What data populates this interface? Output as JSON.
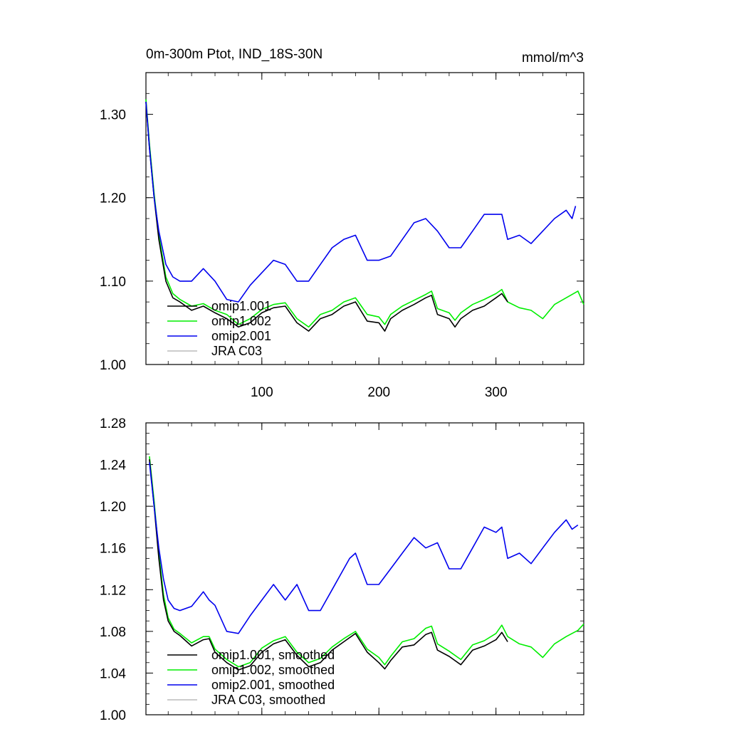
{
  "chart_data": [
    {
      "type": "line",
      "title": "0m-300m Ptot, IND_18S-30N",
      "units": "mmol/m^3",
      "xlim": [
        1,
        375
      ],
      "ylim": [
        1.0,
        1.35
      ],
      "x_ticks": [
        100,
        200,
        300
      ],
      "x_tick_labels": [
        "100",
        "200",
        "300"
      ],
      "y_ticks": [
        1.0,
        1.1,
        1.2,
        1.3
      ],
      "y_tick_labels": [
        "1.00",
        "1.10",
        "1.20",
        "1.30"
      ],
      "legend_position": "lower-left",
      "series": [
        {
          "name": "omip1.001",
          "color": "#000000",
          "x": [
            1,
            4,
            8,
            12,
            18,
            24,
            30,
            40,
            50,
            60,
            70,
            80,
            90,
            100,
            110,
            120,
            130,
            140,
            150,
            160,
            170,
            180,
            190,
            200,
            205,
            210,
            220,
            230,
            240,
            245,
            250,
            260,
            265,
            270,
            280,
            290,
            300,
            305,
            310
          ],
          "y": [
            1.315,
            1.26,
            1.2,
            1.15,
            1.1,
            1.08,
            1.075,
            1.065,
            1.07,
            1.062,
            1.055,
            1.045,
            1.05,
            1.062,
            1.068,
            1.07,
            1.05,
            1.04,
            1.055,
            1.06,
            1.07,
            1.075,
            1.052,
            1.05,
            1.04,
            1.055,
            1.065,
            1.072,
            1.08,
            1.083,
            1.06,
            1.055,
            1.045,
            1.055,
            1.065,
            1.07,
            1.08,
            1.085,
            1.075
          ]
        },
        {
          "name": "omip1.002",
          "color": "#00ee00",
          "x": [
            1,
            4,
            8,
            12,
            18,
            24,
            30,
            40,
            50,
            60,
            70,
            80,
            90,
            100,
            110,
            120,
            130,
            140,
            150,
            160,
            170,
            180,
            190,
            200,
            205,
            210,
            220,
            230,
            240,
            245,
            250,
            260,
            265,
            270,
            280,
            290,
            300,
            305,
            310,
            320,
            330,
            340,
            350,
            360,
            370,
            375
          ],
          "y": [
            1.318,
            1.265,
            1.205,
            1.155,
            1.105,
            1.085,
            1.078,
            1.07,
            1.073,
            1.065,
            1.06,
            1.048,
            1.055,
            1.066,
            1.072,
            1.074,
            1.055,
            1.045,
            1.06,
            1.065,
            1.075,
            1.08,
            1.06,
            1.057,
            1.048,
            1.06,
            1.07,
            1.077,
            1.084,
            1.088,
            1.067,
            1.062,
            1.053,
            1.062,
            1.072,
            1.078,
            1.085,
            1.09,
            1.075,
            1.068,
            1.065,
            1.055,
            1.072,
            1.08,
            1.088,
            1.072
          ]
        },
        {
          "name": "omip2.001",
          "color": "#0000ee",
          "x": [
            1,
            4,
            8,
            12,
            18,
            24,
            30,
            40,
            50,
            60,
            70,
            80,
            90,
            100,
            110,
            120,
            130,
            140,
            150,
            160,
            170,
            180,
            190,
            200,
            210,
            220,
            230,
            240,
            250,
            260,
            270,
            280,
            290,
            300,
            305,
            310,
            320,
            330,
            340,
            350,
            360,
            365,
            368
          ],
          "y": [
            1.315,
            1.26,
            1.2,
            1.16,
            1.12,
            1.105,
            1.1,
            1.1,
            1.115,
            1.1,
            1.078,
            1.075,
            1.095,
            1.11,
            1.125,
            1.12,
            1.1,
            1.1,
            1.12,
            1.14,
            1.15,
            1.155,
            1.125,
            1.125,
            1.13,
            1.15,
            1.17,
            1.175,
            1.16,
            1.14,
            1.14,
            1.16,
            1.18,
            1.18,
            1.18,
            1.15,
            1.155,
            1.145,
            1.16,
            1.175,
            1.185,
            1.175,
            1.19
          ]
        },
        {
          "name": "JRA C03",
          "color": "#bbbbbb",
          "x": [],
          "y": []
        }
      ]
    },
    {
      "type": "line",
      "title": "",
      "xlim": [
        1,
        375
      ],
      "ylim": [
        1.0,
        1.28
      ],
      "x_ticks": [
        100,
        200,
        300
      ],
      "x_tick_labels": [],
      "y_ticks": [
        1.0,
        1.04,
        1.08,
        1.12,
        1.16,
        1.2,
        1.24,
        1.28
      ],
      "y_tick_labels": [
        "1.00",
        "1.04",
        "1.08",
        "1.12",
        "1.16",
        "1.20",
        "1.24",
        "1.28"
      ],
      "legend_position": "lower-left",
      "series": [
        {
          "name": "omip1.001, smoothed",
          "color": "#000000",
          "x": [
            4,
            8,
            12,
            16,
            20,
            25,
            30,
            40,
            50,
            55,
            60,
            70,
            80,
            90,
            100,
            110,
            120,
            130,
            140,
            150,
            160,
            170,
            180,
            190,
            200,
            205,
            210,
            220,
            230,
            240,
            245,
            250,
            260,
            270,
            280,
            290,
            300,
            305,
            310
          ],
          "y": [
            1.245,
            1.2,
            1.15,
            1.11,
            1.09,
            1.08,
            1.076,
            1.066,
            1.072,
            1.073,
            1.06,
            1.05,
            1.043,
            1.047,
            1.06,
            1.068,
            1.072,
            1.057,
            1.046,
            1.05,
            1.062,
            1.07,
            1.078,
            1.06,
            1.05,
            1.044,
            1.052,
            1.065,
            1.067,
            1.077,
            1.079,
            1.062,
            1.056,
            1.048,
            1.062,
            1.066,
            1.072,
            1.079,
            1.07
          ]
        },
        {
          "name": "omip1.002, smoothed",
          "color": "#00ee00",
          "x": [
            4,
            8,
            12,
            16,
            20,
            25,
            30,
            40,
            50,
            55,
            60,
            70,
            80,
            90,
            100,
            110,
            120,
            130,
            140,
            150,
            160,
            170,
            180,
            190,
            200,
            205,
            210,
            220,
            230,
            240,
            245,
            250,
            260,
            270,
            280,
            290,
            300,
            305,
            310,
            320,
            330,
            340,
            350,
            360,
            370,
            375
          ],
          "y": [
            1.248,
            1.205,
            1.155,
            1.115,
            1.093,
            1.082,
            1.078,
            1.069,
            1.075,
            1.075,
            1.063,
            1.053,
            1.046,
            1.05,
            1.064,
            1.071,
            1.075,
            1.06,
            1.05,
            1.054,
            1.065,
            1.073,
            1.08,
            1.063,
            1.055,
            1.048,
            1.056,
            1.07,
            1.073,
            1.083,
            1.085,
            1.068,
            1.061,
            1.053,
            1.067,
            1.071,
            1.078,
            1.086,
            1.075,
            1.068,
            1.065,
            1.055,
            1.068,
            1.075,
            1.081,
            1.087
          ]
        },
        {
          "name": "omip2.001, smoothed",
          "color": "#0000ee",
          "x": [
            4,
            8,
            12,
            16,
            20,
            25,
            30,
            40,
            50,
            55,
            60,
            70,
            80,
            90,
            100,
            110,
            120,
            130,
            140,
            150,
            160,
            170,
            175,
            180,
            190,
            200,
            210,
            220,
            230,
            240,
            250,
            260,
            270,
            280,
            290,
            300,
            305,
            310,
            320,
            330,
            340,
            350,
            360,
            365,
            370
          ],
          "y": [
            1.242,
            1.2,
            1.16,
            1.13,
            1.11,
            1.102,
            1.1,
            1.104,
            1.118,
            1.11,
            1.105,
            1.08,
            1.078,
            1.095,
            1.11,
            1.125,
            1.11,
            1.125,
            1.1,
            1.1,
            1.12,
            1.14,
            1.15,
            1.155,
            1.125,
            1.125,
            1.14,
            1.155,
            1.17,
            1.16,
            1.165,
            1.14,
            1.14,
            1.16,
            1.18,
            1.175,
            1.18,
            1.15,
            1.155,
            1.145,
            1.16,
            1.175,
            1.187,
            1.178,
            1.182
          ]
        },
        {
          "name": "JRA C03, smoothed",
          "color": "#bbbbbb",
          "x": [],
          "y": []
        }
      ]
    }
  ]
}
